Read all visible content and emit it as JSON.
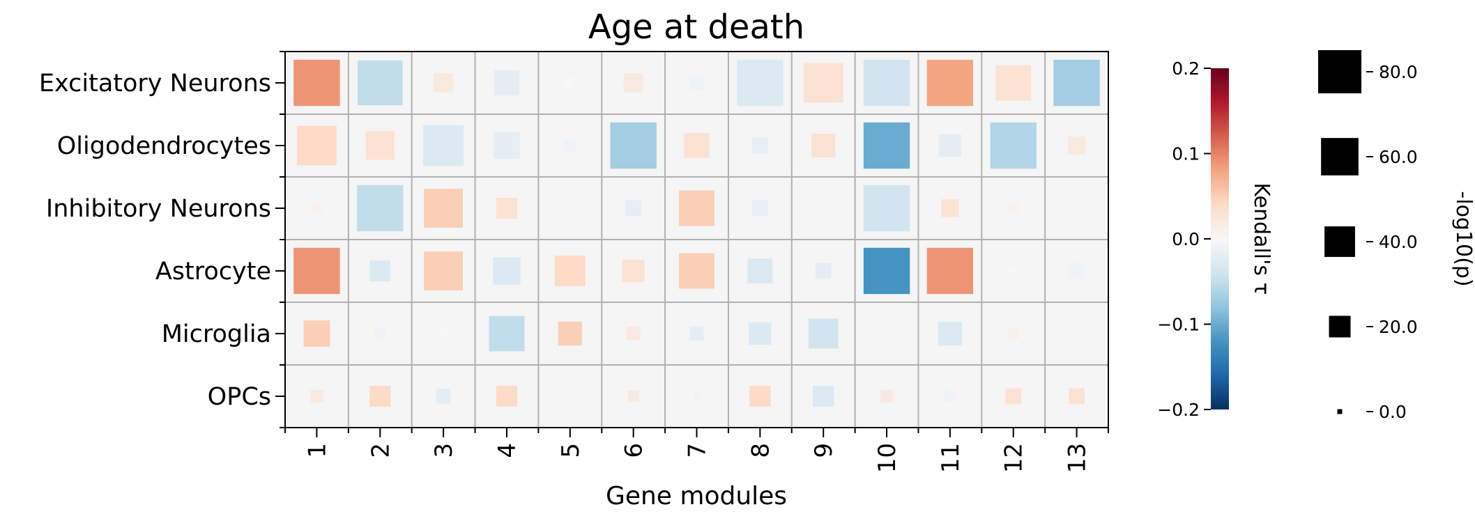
{
  "chart_data": {
    "type": "heatmap",
    "title": "Age at death",
    "xlabel": "Gene modules",
    "ylabel": "",
    "x_categories": [
      "1",
      "2",
      "3",
      "4",
      "5",
      "6",
      "7",
      "8",
      "9",
      "10",
      "11",
      "12",
      "13"
    ],
    "y_categories": [
      "Excitatory Neurons",
      "Oligodendrocytes",
      "Inhibitory Neurons",
      "Astrocyte",
      "Microglia",
      "OPCs"
    ],
    "color_metric": "Kendall's τ",
    "size_metric": "-log10(p)",
    "tau": [
      [
        0.09,
        -0.05,
        0.02,
        -0.02,
        0.0,
        0.02,
        -0.01,
        -0.03,
        0.03,
        -0.04,
        0.08,
        0.03,
        -0.07
      ],
      [
        0.04,
        0.03,
        -0.03,
        -0.02,
        -0.01,
        -0.07,
        0.03,
        -0.02,
        0.03,
        -0.1,
        -0.02,
        -0.06,
        0.02
      ],
      [
        0.01,
        -0.05,
        0.05,
        0.03,
        0.0,
        -0.02,
        0.05,
        -0.02,
        0.0,
        -0.04,
        0.03,
        0.01,
        0.0
      ],
      [
        0.09,
        -0.03,
        0.05,
        -0.03,
        0.04,
        0.03,
        0.05,
        -0.03,
        -0.02,
        -0.12,
        0.09,
        0.0,
        -0.01
      ],
      [
        0.05,
        -0.01,
        0.0,
        -0.05,
        0.05,
        0.02,
        -0.02,
        -0.03,
        -0.04,
        0.0,
        -0.03,
        0.01,
        0.0
      ],
      [
        0.02,
        0.04,
        -0.02,
        0.04,
        0.0,
        0.02,
        0.01,
        0.04,
        -0.03,
        0.02,
        -0.01,
        0.03,
        0.03
      ]
    ],
    "neglog10p": [
      [
        68,
        64,
        12,
        20,
        3,
        12,
        6,
        68,
        50,
        68,
        68,
        40,
        68
      ],
      [
        50,
        26,
        52,
        22,
        5,
        68,
        20,
        8,
        18,
        68,
        16,
        68,
        10
      ],
      [
        3,
        68,
        48,
        14,
        0,
        8,
        40,
        8,
        0,
        68,
        10,
        3,
        0
      ],
      [
        68,
        14,
        48,
        24,
        30,
        16,
        40,
        20,
        8,
        68,
        68,
        1,
        8
      ],
      [
        22,
        4,
        2,
        40,
        18,
        6,
        6,
        16,
        28,
        0,
        18,
        4,
        0
      ],
      [
        5,
        14,
        7,
        14,
        0,
        4,
        1,
        14,
        14,
        5,
        4,
        8,
        8
      ]
    ],
    "colorbar": {
      "label": "Kendall's τ",
      "min": -0.2,
      "max": 0.2,
      "ticks": [
        "0.2",
        "0.1",
        "0.0",
        "−0.1",
        "−0.2"
      ]
    },
    "size_legend": {
      "label": "-log10(p)",
      "entries": [
        {
          "value": 80.0,
          "label": "80.0"
        },
        {
          "value": 60.0,
          "label": "60.0"
        },
        {
          "value": 40.0,
          "label": "40.0"
        },
        {
          "value": 20.0,
          "label": "20.0"
        },
        {
          "value": 0.0,
          "label": "0.0"
        }
      ]
    },
    "grid": true
  }
}
